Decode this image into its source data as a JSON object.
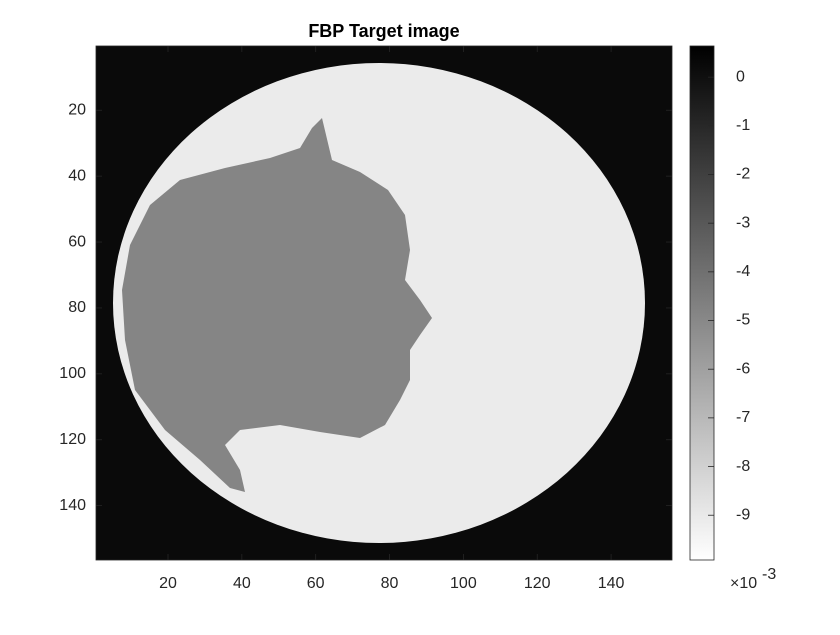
{
  "chart_data": {
    "type": "image",
    "title": "FBP Target image",
    "xlim": [
      0.5,
      156.5
    ],
    "xticks": [
      20,
      40,
      60,
      80,
      100,
      120,
      140
    ],
    "ylim": [
      0.5,
      156.5
    ],
    "yticks": [
      20,
      40,
      60,
      80,
      100,
      120,
      140
    ],
    "y_reversed": true,
    "colormap": [
      "#ffffff",
      "#000000"
    ],
    "colorbar": {
      "lim": [
        -0.00992,
        0.00064
      ],
      "ticks": [
        {
          "value": 0,
          "label": "0"
        },
        {
          "value": -0.001,
          "label": "-1"
        },
        {
          "value": -0.002,
          "label": "-2"
        },
        {
          "value": -0.003,
          "label": "-3"
        },
        {
          "value": -0.004,
          "label": "-4"
        },
        {
          "value": -0.005,
          "label": "-5"
        },
        {
          "value": -0.006,
          "label": "-6"
        },
        {
          "value": -0.007,
          "label": "-7"
        },
        {
          "value": -0.008,
          "label": "-8"
        },
        {
          "value": -0.009,
          "label": "-9"
        }
      ],
      "multiplier_base": "×10",
      "multiplier_exponent": "-3"
    }
  }
}
